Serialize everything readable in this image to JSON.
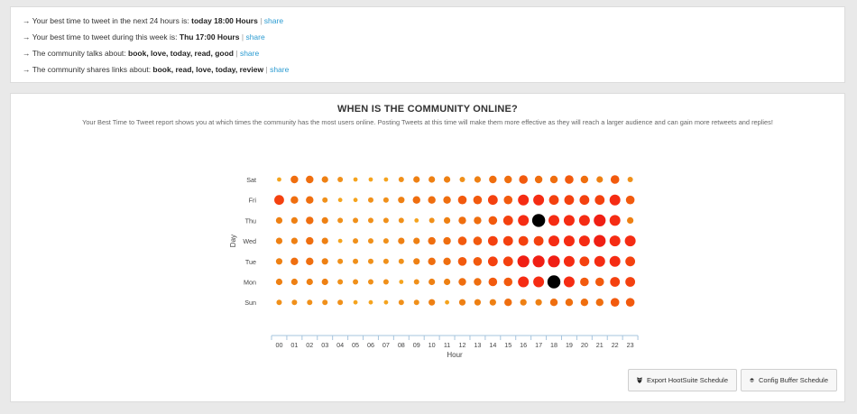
{
  "insights": [
    {
      "arrow": "→",
      "text": "Your best time to tweet in the next 24 hours is: ",
      "value": "today 18:00 Hours",
      "sep": "|",
      "share": "share"
    },
    {
      "arrow": "→",
      "text": "Your best time to tweet during this week is: ",
      "value": "Thu 17:00 Hours",
      "sep": "|",
      "share": "share"
    },
    {
      "arrow": "→",
      "text": "The community talks about: ",
      "value": "book, love, today, read, good",
      "sep": "|",
      "share": "share"
    },
    {
      "arrow": "→",
      "text": "The community shares links about: ",
      "value": "book, read, love, today, review",
      "sep": "|",
      "share": "share"
    }
  ],
  "report": {
    "title": "WHEN IS THE COMMUNITY ONLINE?",
    "description": "Your Best Time to Tweet report shows you at which times the community has the most users online. Posting Tweets at this time will make them more effective as they will reach a larger audience and can gain more retweets and replies!"
  },
  "chart_data": {
    "type": "punchcard",
    "title": "WHEN IS THE COMMUNITY ONLINE?",
    "xlabel": "Hour",
    "ylabel": "Day",
    "x": [
      "00",
      "01",
      "02",
      "03",
      "04",
      "05",
      "06",
      "07",
      "08",
      "09",
      "10",
      "11",
      "12",
      "13",
      "14",
      "15",
      "16",
      "17",
      "18",
      "19",
      "20",
      "21",
      "22",
      "23"
    ],
    "y": [
      "Sat",
      "Fri",
      "Thu",
      "Wed",
      "Tue",
      "Mon",
      "Sun"
    ],
    "value_scale": "relative activity level 1-10 (bubble size and color)",
    "values": [
      [
        2,
        5,
        5,
        4,
        3,
        2,
        2,
        2,
        3,
        4,
        4,
        4,
        3,
        4,
        5,
        5,
        6,
        5,
        5,
        6,
        5,
        4,
        6,
        3
      ],
      [
        7,
        5,
        5,
        3,
        2,
        2,
        3,
        3,
        4,
        5,
        5,
        5,
        6,
        6,
        7,
        6,
        8,
        8,
        7,
        7,
        7,
        7,
        8,
        6
      ],
      [
        4,
        4,
        5,
        4,
        3,
        3,
        3,
        3,
        3,
        2,
        3,
        4,
        5,
        5,
        6,
        7,
        8,
        10,
        8,
        8,
        8,
        9,
        8,
        4
      ],
      [
        4,
        4,
        5,
        4,
        2,
        3,
        3,
        3,
        4,
        4,
        5,
        5,
        6,
        6,
        7,
        7,
        7,
        7,
        8,
        8,
        8,
        9,
        8,
        8
      ],
      [
        4,
        5,
        5,
        4,
        3,
        3,
        3,
        3,
        3,
        4,
        5,
        5,
        6,
        6,
        7,
        7,
        9,
        9,
        9,
        8,
        7,
        8,
        8,
        7
      ],
      [
        4,
        4,
        4,
        4,
        3,
        3,
        3,
        3,
        2,
        3,
        4,
        4,
        5,
        5,
        6,
        6,
        8,
        8,
        10,
        8,
        6,
        6,
        7,
        7
      ],
      [
        3,
        3,
        3,
        3,
        3,
        2,
        2,
        2,
        3,
        3,
        4,
        2,
        4,
        4,
        4,
        5,
        4,
        4,
        5,
        5,
        5,
        5,
        6,
        6
      ]
    ],
    "peak_color": "#000000",
    "colors": [
      "#f8b631",
      "#f5a31d",
      "#f0901a",
      "#ee8013",
      "#ef6e0f",
      "#f25a0e",
      "#f4410f",
      "#f52c13",
      "#f01f14",
      "#000000"
    ]
  },
  "buttons": {
    "hootsuite": "Export HootSuite Schedule",
    "buffer": "Config Buffer Schedule"
  }
}
